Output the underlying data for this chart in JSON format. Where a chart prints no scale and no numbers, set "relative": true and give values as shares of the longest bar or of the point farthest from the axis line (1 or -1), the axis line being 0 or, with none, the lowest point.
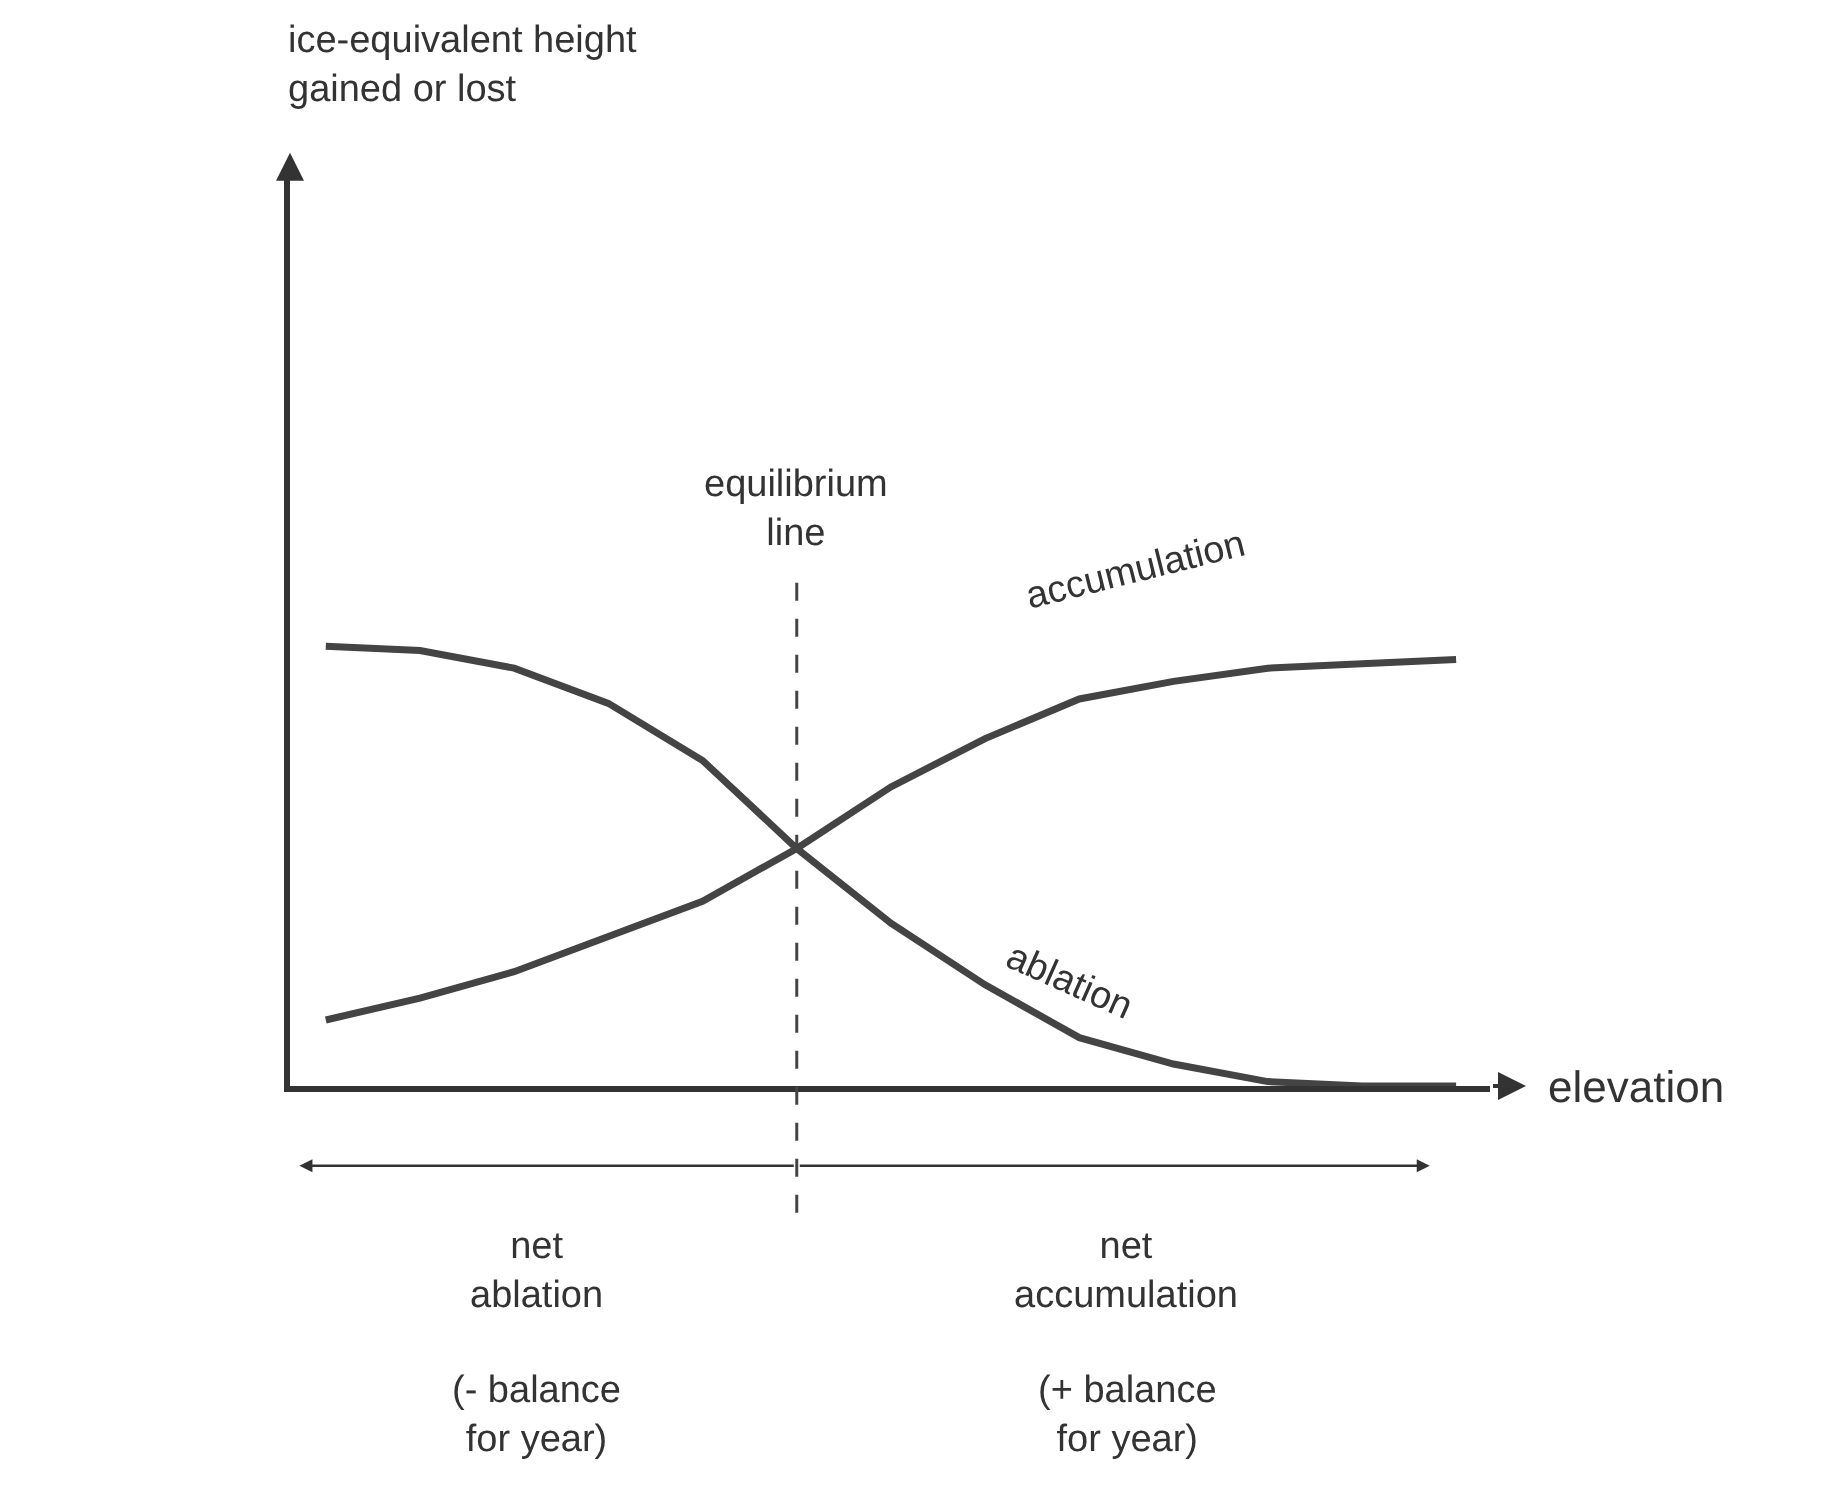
{
  "chart_data": {
    "type": "line",
    "relative": true,
    "xlabel": "elevation",
    "marker": "none",
    "line_style": "solid",
    "categories": [
      null,
      null,
      null,
      null,
      null,
      null,
      null,
      null,
      null,
      null,
      null,
      null,
      null
    ],
    "series": [
      {
        "name": "accumulation",
        "color": "#444444",
        "values": [
          0.15,
          0.2,
          0.26,
          0.34,
          0.42,
          0.54,
          0.68,
          0.79,
          0.88,
          0.92,
          0.95,
          0.96,
          0.97
        ]
      },
      {
        "name": "ablation",
        "color": "#444444",
        "values": [
          1,
          0.99,
          0.95,
          0.87,
          0.74,
          0.54,
          0.37,
          0.23,
          0.11,
          0.05,
          0.01,
          0,
          0
        ]
      }
    ],
    "annotations": [
      "ice-equivalent height\ngained or lost",
      "equilibrium\nline",
      "net\nablation",
      "(- balance\nfor year)",
      "net\naccumulation",
      "(+ balance\nfor year)"
    ]
  }
}
